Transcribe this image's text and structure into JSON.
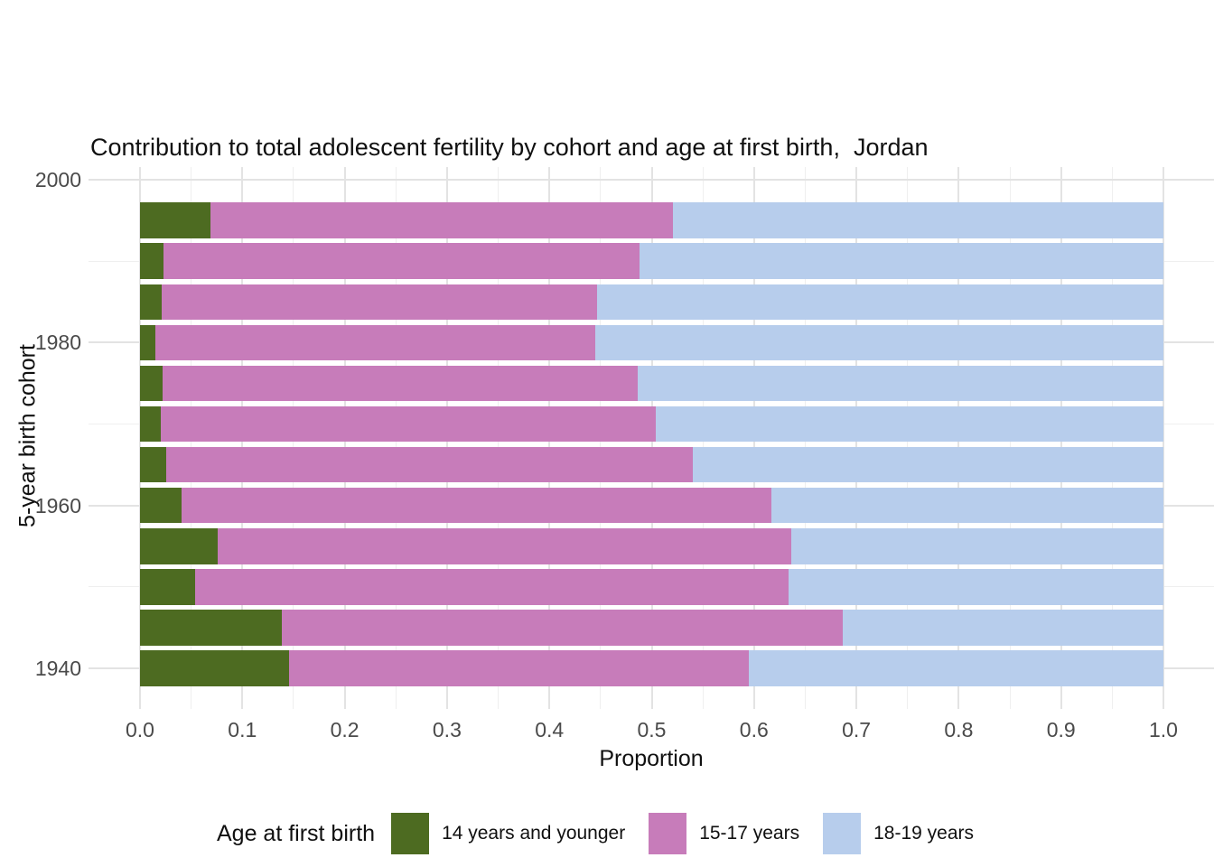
{
  "title": "Contribution to total adolescent fertility by cohort and age at first birth,  Jordan",
  "colors": {
    "age_14_and_younger": "#4D6B21",
    "age_15_17": "#C77CBA",
    "age_18_19": "#B7CDEC",
    "grid_major": "#e3e3e3",
    "grid_minor": "#efefef",
    "axis_text": "#4a4a4a",
    "text": "#101010"
  },
  "legend": {
    "title": "Age at first birth",
    "items": [
      {
        "label": "14 years and younger",
        "color_key": "age_14_and_younger"
      },
      {
        "label": "15-17 years",
        "color_key": "age_15_17"
      },
      {
        "label": "18-19 years",
        "color_key": "age_18_19"
      }
    ]
  },
  "axes": {
    "xlabel": "Proportion",
    "ylabel": "5-year birth cohort",
    "x_ticks": [
      {
        "label": "0.0",
        "value": 0.0
      },
      {
        "label": "0.1",
        "value": 0.1
      },
      {
        "label": "0.2",
        "value": 0.2
      },
      {
        "label": "0.3",
        "value": 0.3
      },
      {
        "label": "0.4",
        "value": 0.4
      },
      {
        "label": "0.5",
        "value": 0.5
      },
      {
        "label": "0.6",
        "value": 0.6
      },
      {
        "label": "0.7",
        "value": 0.7
      },
      {
        "label": "0.8",
        "value": 0.8
      },
      {
        "label": "0.9",
        "value": 0.9
      },
      {
        "label": "1.0",
        "value": 1.0
      }
    ],
    "x_minor_values": [
      0.05,
      0.15,
      0.25,
      0.35,
      0.45,
      0.55,
      0.65,
      0.75,
      0.85,
      0.95,
      1.05
    ],
    "y_ticks": [
      {
        "label": "2000",
        "value": 2000
      },
      {
        "label": "1980",
        "value": 1980
      },
      {
        "label": "1960",
        "value": 1960
      },
      {
        "label": "1940",
        "value": 1940
      }
    ],
    "y_minor_values": [
      1990,
      1970,
      1950
    ]
  },
  "chart_data": {
    "type": "bar",
    "orientation": "horizontal_stacked",
    "title": "Contribution to total adolescent fertility by cohort and age at first birth,  Jordan",
    "xlabel": "Proportion",
    "ylabel": "5-year birth cohort",
    "xlim": [
      0,
      1
    ],
    "grid": true,
    "legend_position": "bottom",
    "legend_title": "Age at first birth",
    "note": "cohorts listed top to bottom as displayed",
    "categories": [
      1995,
      1990,
      1985,
      1980,
      1975,
      1970,
      1965,
      1960,
      1955,
      1950,
      1945,
      1940
    ],
    "series": [
      {
        "name": "14 years and younger",
        "color_key": "age_14_and_younger",
        "values": [
          0.069,
          0.023,
          0.021,
          0.015,
          0.022,
          0.02,
          0.026,
          0.041,
          0.076,
          0.054,
          0.139,
          0.146
        ]
      },
      {
        "name": "15-17 years",
        "color_key": "age_15_17",
        "values": [
          0.452,
          0.465,
          0.426,
          0.43,
          0.464,
          0.484,
          0.514,
          0.576,
          0.56,
          0.58,
          0.548,
          0.449
        ]
      },
      {
        "name": "18-19 years",
        "color_key": "age_18_19",
        "values": [
          0.479,
          0.512,
          0.553,
          0.555,
          0.514,
          0.496,
          0.46,
          0.383,
          0.364,
          0.366,
          0.313,
          0.405
        ]
      }
    ]
  }
}
